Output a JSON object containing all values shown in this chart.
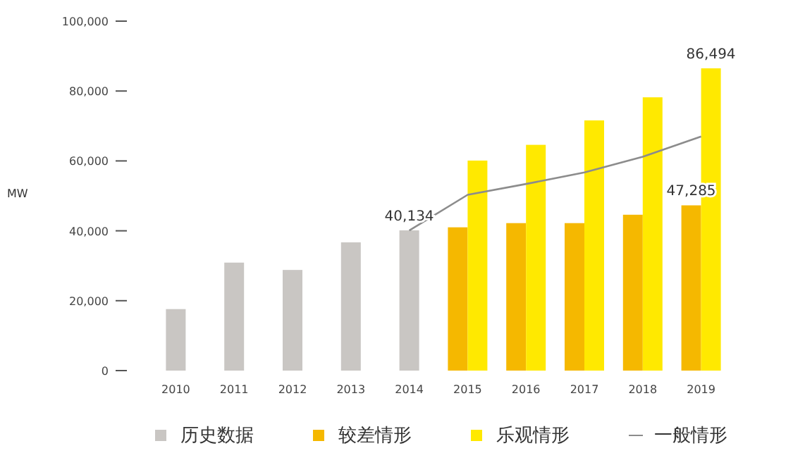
{
  "chart_data": {
    "type": "bar",
    "ylabel": "MW",
    "categories": [
      "2010",
      "2011",
      "2012",
      "2013",
      "2014",
      "2015",
      "2016",
      "2017",
      "2018",
      "2019"
    ],
    "series": [
      {
        "name": "历史数据",
        "color": "#c9c6c3",
        "values": [
          17600,
          30900,
          28800,
          36700,
          40134,
          null,
          null,
          null,
          null,
          null
        ],
        "value_labels": [
          null,
          null,
          null,
          null,
          "40,134",
          null,
          null,
          null,
          null,
          null
        ]
      },
      {
        "name": "较差情形",
        "color": "#f5b800",
        "values": [
          null,
          null,
          null,
          null,
          null,
          41000,
          42200,
          42200,
          44600,
          47285
        ],
        "value_labels": [
          null,
          null,
          null,
          null,
          null,
          null,
          null,
          null,
          null,
          "47,285"
        ]
      },
      {
        "name": "乐观情形",
        "color": "#ffe900",
        "values": [
          null,
          null,
          null,
          null,
          null,
          60100,
          64600,
          71600,
          78200,
          86494
        ],
        "value_labels": [
          null,
          null,
          null,
          null,
          null,
          null,
          null,
          null,
          null,
          "86,494"
        ]
      },
      {
        "name": "一般情形",
        "type": "line",
        "color": "#8c8c8c",
        "values": [
          null,
          null,
          null,
          null,
          40100,
          50300,
          53400,
          56700,
          61200,
          67000
        ]
      }
    ],
    "ylim": [
      0,
      100000
    ],
    "yticks": [
      {
        "value": 0,
        "label": "0"
      },
      {
        "value": 20000,
        "label": "20,000"
      },
      {
        "value": 40000,
        "label": "40,000"
      },
      {
        "value": 60000,
        "label": "60,000"
      },
      {
        "value": 80000,
        "label": "80,000"
      },
      {
        "value": 100000,
        "label": "100,000"
      }
    ],
    "legend": "bottom",
    "grid": false
  }
}
